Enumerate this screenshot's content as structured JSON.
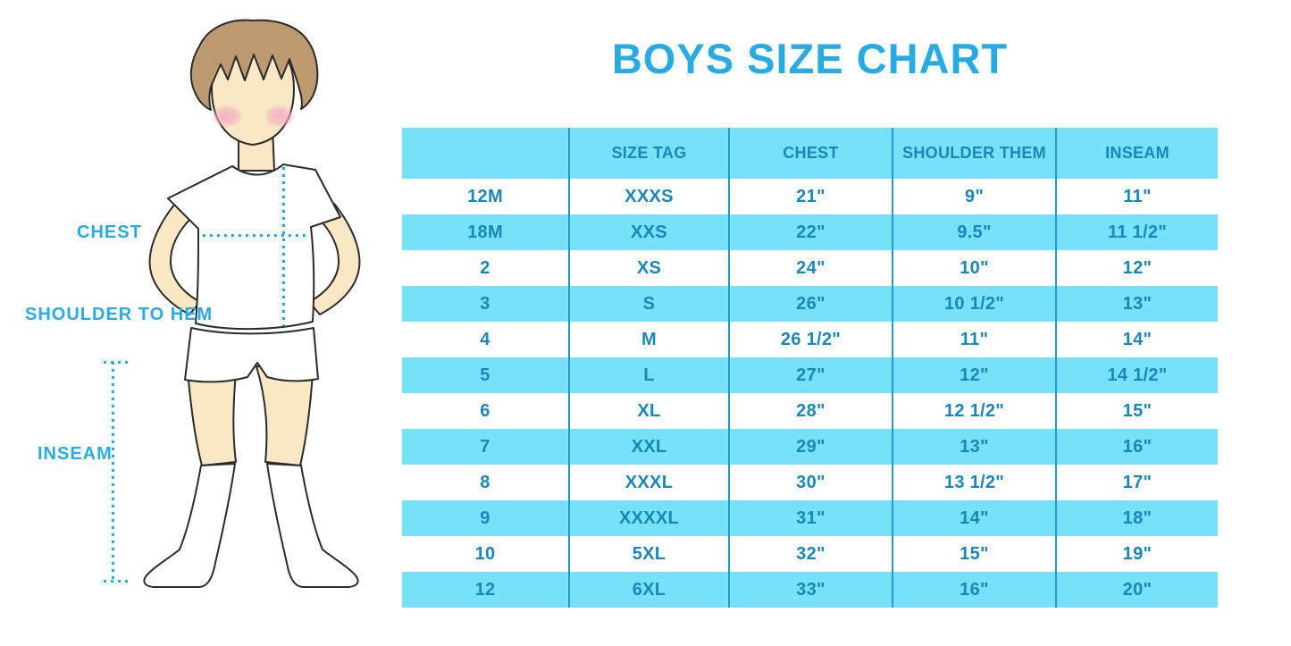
{
  "title": "BOYS SIZE CHART",
  "figure": {
    "labels": {
      "chest": "CHEST",
      "shoulder_to_hem": "SHOULDER TO HEM",
      "inseam": "INSEAM"
    }
  },
  "chart_data": {
    "type": "table",
    "title": "BOYS SIZE CHART",
    "columns": [
      "",
      "SIZE TAG",
      "CHEST",
      "SHOULDER THEM",
      "INSEAM"
    ],
    "rows": [
      [
        "12M",
        "XXXS",
        "21\"",
        "9\"",
        "11\""
      ],
      [
        "18M",
        "XXS",
        "22\"",
        "9.5\"",
        "11 1/2\""
      ],
      [
        "2",
        "XS",
        "24\"",
        "10\"",
        "12\""
      ],
      [
        "3",
        "S",
        "26\"",
        "10 1/2\"",
        "13\""
      ],
      [
        "4",
        "M",
        "26 1/2\"",
        "11\"",
        "14\""
      ],
      [
        "5",
        "L",
        "27\"",
        "12\"",
        "14 1/2\""
      ],
      [
        "6",
        "XL",
        "28\"",
        "12 1/2\"",
        "15\""
      ],
      [
        "7",
        "XXL",
        "29\"",
        "13\"",
        "16\""
      ],
      [
        "8",
        "XXXL",
        "30\"",
        "13 1/2\"",
        "17\""
      ],
      [
        "9",
        "XXXXL",
        "31\"",
        "14\"",
        "18\""
      ],
      [
        "10",
        "5XL",
        "32\"",
        "15\"",
        "19\""
      ],
      [
        "12",
        "6XL",
        "33\"",
        "16\"",
        "20\""
      ]
    ],
    "layout": {
      "banding": "alternating-cyan-white",
      "grid": "vertical-dividers-only"
    }
  },
  "colors": {
    "accent_blue": "#29ABE2",
    "row_band_cyan": "#76E1F9",
    "table_text_blue": "#1B86B8",
    "divider_blue": "#2499C6",
    "skin": "#FAE7C5",
    "hair_brown": "#BC9A70",
    "blush_pink": "#F2AFC4"
  }
}
